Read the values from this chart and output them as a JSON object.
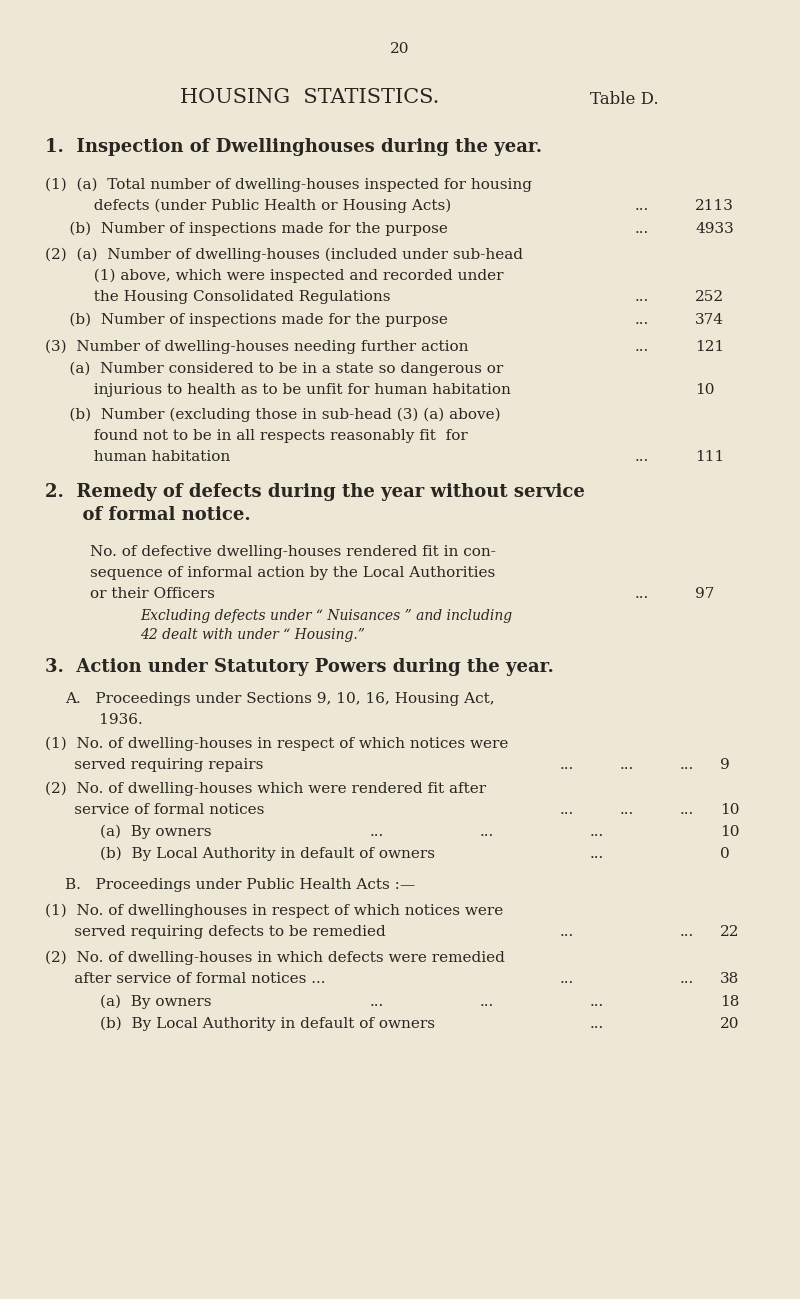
{
  "bg_color": "#ede8d5",
  "text_color": "#2a2520",
  "page_number": "20",
  "title": "HOUSING  STATISTICS.",
  "table_label": "Table D.",
  "section1_heading": "1.  Inspection of Dwellinghouses during the year."
}
